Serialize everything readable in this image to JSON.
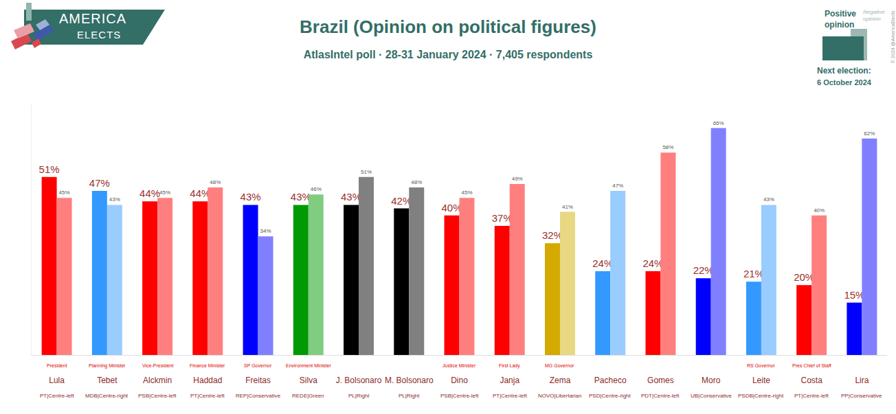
{
  "chart_data": {
    "type": "bar",
    "title": "Brazil (Opinion on political figures)",
    "subtitle": "AtlasIntel poll · 28-31 January 2024 · 7,405 respondents",
    "logo": [
      "AMERICA",
      "ELECTS"
    ],
    "next_election": [
      "Next election:",
      "6 October 2024"
    ],
    "copyright": "© 2024 @AmericaElects",
    "categories": [
      "Lula",
      "Tebet",
      "Alckmin",
      "Haddad",
      "Freitas",
      "Silva",
      "J. Bolsonaro",
      "M. Bolsonaro",
      "Dino",
      "Janja",
      "Zema",
      "Pacheco",
      "Gomes",
      "Moro",
      "Leite",
      "Costa",
      "Lira"
    ],
    "roles": [
      "President",
      "Planning Minister",
      "Vice-President",
      "Finance Minister",
      "SP Governor",
      "Environment Minister",
      null,
      null,
      "Justice Minister",
      "First Lady",
      "MG Governor",
      null,
      null,
      null,
      "RS Governor",
      "Pres Chief of Staff",
      null
    ],
    "parties": [
      "PT|Centre-left",
      "MDB|Centre-right",
      "PSB|Centre-left",
      "PT|Centre-left",
      "REP|Conservative",
      "REDE|Green",
      "PL|Right",
      "PL|Right",
      "PSB|Centre-left",
      "PT|Centre-left",
      "NOVO|Libertarian",
      "PSD|Centre-right",
      "PDT|Centre-left",
      "UB|Conservative",
      "PSDB|Centre-right",
      "PT|Centre-left",
      "PP|Conservative"
    ],
    "series": [
      {
        "name": "Positive opinion",
        "values": [
          51,
          47,
          44,
          44,
          43,
          43,
          43,
          42,
          40,
          37,
          32,
          24,
          24,
          22,
          21,
          20,
          15
        ],
        "value_labels": [
          "51%",
          "47%",
          "44%",
          "44%",
          "43%",
          "43%",
          "43%",
          "42%",
          "40%",
          "37%",
          "32%",
          "24%",
          "24%",
          "22%",
          "21%",
          "20%",
          "15%"
        ],
        "colors": [
          "#ff0000",
          "#3399ff",
          "#ff0000",
          "#ff0000",
          "#0000ff",
          "#009900",
          "#000000",
          "#000000",
          "#ff0000",
          "#ff0000",
          "#d4a900",
          "#3399ff",
          "#ff0000",
          "#0000ff",
          "#3399ff",
          "#ff0000",
          "#0000ff"
        ]
      },
      {
        "name": "Negative opinion",
        "values": [
          45,
          43,
          45,
          48,
          34,
          46,
          51,
          48,
          45,
          49,
          41,
          47,
          58,
          65,
          43,
          40,
          62
        ],
        "value_labels": [
          "45%",
          "43%",
          "45%",
          "48%",
          "34%",
          "46%",
          "51%",
          "48%",
          "45%",
          "49%",
          "41%",
          "47%",
          "58%",
          "65%",
          "43%",
          "40%",
          "62%"
        ],
        "colors": [
          "#ff7f7f",
          "#99ccff",
          "#ff7f7f",
          "#ff7f7f",
          "#8080ff",
          "#80cc80",
          "#808080",
          "#808080",
          "#ff7f7f",
          "#ff7f7f",
          "#e8d882",
          "#99ccff",
          "#ff7f7f",
          "#8080ff",
          "#99ccff",
          "#ff7f7f",
          "#8080ff"
        ]
      }
    ],
    "ylim": [
      0,
      72
    ],
    "yticks": [],
    "grid": false,
    "data_labels": true,
    "tick_labels": "x",
    "legend": "top right"
  }
}
